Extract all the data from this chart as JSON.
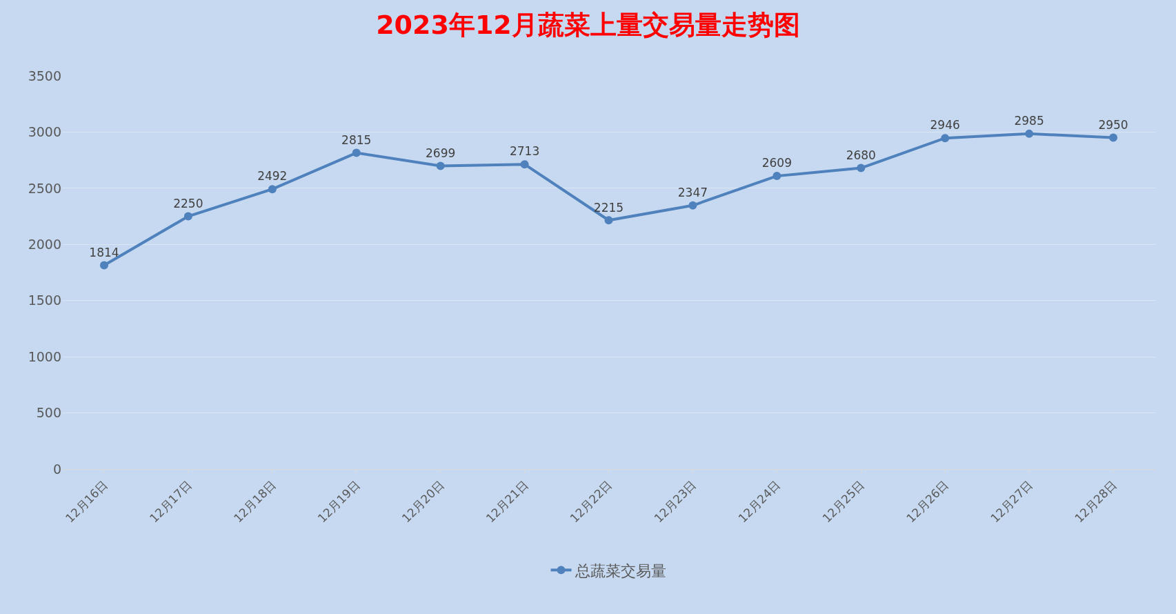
{
  "chart_data": {
    "type": "line",
    "title": "2023年12月蔬菜上量交易量走势图",
    "categories": [
      "12月16日",
      "12月17日",
      "12月18日",
      "12月19日",
      "12月20日",
      "12月21日",
      "12月22日",
      "12月23日",
      "12月24日",
      "12月25日",
      "12月26日",
      "12月27日",
      "12月28日"
    ],
    "series": [
      {
        "name": "总蔬菜交易量",
        "color": "#4f81bd",
        "values": [
          1814,
          2250,
          2492,
          2815,
          2699,
          2713,
          2215,
          2347,
          2609,
          2680,
          2946,
          2985,
          2950
        ]
      }
    ],
    "ylim": [
      0,
      3500
    ],
    "yticks": [
      0,
      500,
      1000,
      1500,
      2000,
      2500,
      3000,
      3500
    ],
    "grid": "y",
    "legend": "bottom",
    "marker": "circle",
    "line_style": "solid",
    "data_labels": true
  }
}
